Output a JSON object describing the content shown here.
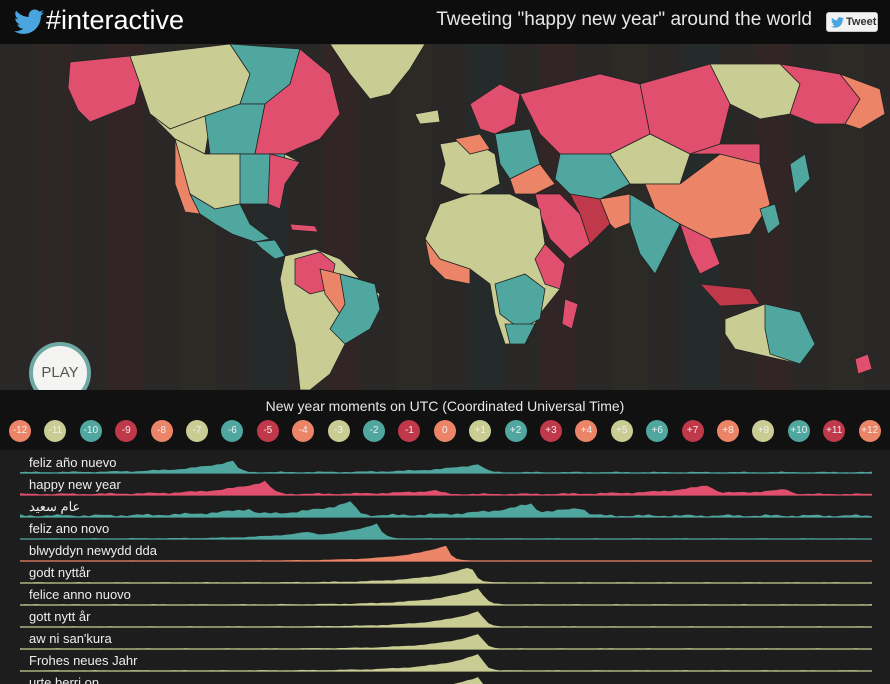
{
  "header": {
    "brand": "#interactive",
    "headline": "Tweeting \"happy new year\" around the world",
    "tweet_label": "Tweet"
  },
  "colors": {
    "teal": "#4fa7a0",
    "pink": "#e0506e",
    "salmon": "#ec8568",
    "khaki": "#c9cd93",
    "red": "#c0394a",
    "dark": "#1d1d1d"
  },
  "map": {
    "play_label": "PLAY"
  },
  "timezones": {
    "title": "New year moments on UTC (Coordinated Universal Time)",
    "items": [
      {
        "label": "-12",
        "color": "#ec8568"
      },
      {
        "label": "-11",
        "color": "#c9cd93"
      },
      {
        "label": "-10",
        "color": "#4fa7a0"
      },
      {
        "label": "-9",
        "color": "#c0394a"
      },
      {
        "label": "-8",
        "color": "#ec8568"
      },
      {
        "label": "-7",
        "color": "#c9cd93"
      },
      {
        "label": "-6",
        "color": "#4fa7a0"
      },
      {
        "label": "-5",
        "color": "#c0394a"
      },
      {
        "label": "-4",
        "color": "#ec8568"
      },
      {
        "label": "-3",
        "color": "#c9cd93"
      },
      {
        "label": "-2",
        "color": "#4fa7a0"
      },
      {
        "label": "-1",
        "color": "#c0394a"
      },
      {
        "label": "0",
        "color": "#ec8568"
      },
      {
        "label": "+1",
        "color": "#c9cd93"
      },
      {
        "label": "+2",
        "color": "#4fa7a0"
      },
      {
        "label": "+3",
        "color": "#c0394a"
      },
      {
        "label": "+4",
        "color": "#ec8568"
      },
      {
        "label": "+5",
        "color": "#c9cd93"
      },
      {
        "label": "+6",
        "color": "#4fa7a0"
      },
      {
        "label": "+7",
        "color": "#c0394a"
      },
      {
        "label": "+8",
        "color": "#ec8568"
      },
      {
        "label": "+9",
        "color": "#c9cd93"
      },
      {
        "label": "+10",
        "color": "#4fa7a0"
      },
      {
        "label": "+11",
        "color": "#c0394a"
      },
      {
        "label": "+12",
        "color": "#ec8568"
      }
    ]
  },
  "tracks": [
    {
      "label": "feliz año nuevo",
      "color": "#4fa7a0",
      "peaks": [
        [
          0.25,
          0.6
        ],
        [
          0.54,
          0.45
        ]
      ],
      "noise": 0.08
    },
    {
      "label": "happy new year",
      "color": "#e0506e",
      "peaks": [
        [
          0.29,
          0.7
        ],
        [
          0.49,
          0.2
        ],
        [
          0.81,
          0.45
        ],
        [
          0.9,
          0.25
        ]
      ],
      "noise": 0.1
    },
    {
      "label": "عام سعيد",
      "color": "#4fa7a0",
      "peaks": [
        [
          0.27,
          0.3
        ],
        [
          0.39,
          0.75
        ],
        [
          0.6,
          0.5
        ],
        [
          0.66,
          0.45
        ]
      ],
      "noise": 0.15
    },
    {
      "label": "feliz ano novo",
      "color": "#4fa7a0",
      "peaks": [
        [
          0.42,
          0.8
        ],
        [
          0.34,
          0.2
        ]
      ],
      "noise": 0.05
    },
    {
      "label": "blwyddyn newydd dda",
      "color": "#ec8568",
      "peaks": [
        [
          0.5,
          0.8
        ]
      ],
      "noise": 0.03
    },
    {
      "label": "godt nyttår",
      "color": "#c9cd93",
      "peaks": [
        [
          0.53,
          0.85
        ]
      ],
      "noise": 0.05
    },
    {
      "label": "felice anno nuovo",
      "color": "#c9cd93",
      "peaks": [
        [
          0.54,
          0.9
        ]
      ],
      "noise": 0.05
    },
    {
      "label": "gott nytt år",
      "color": "#c9cd93",
      "peaks": [
        [
          0.54,
          0.85
        ]
      ],
      "noise": 0.04
    },
    {
      "label": "aw ni san'kura",
      "color": "#c9cd93",
      "peaks": [
        [
          0.54,
          0.8
        ]
      ],
      "noise": 0.04
    },
    {
      "label": "Frohes neues Jahr",
      "color": "#c9cd93",
      "peaks": [
        [
          0.54,
          0.9
        ]
      ],
      "noise": 0.05
    },
    {
      "label": "urte berri on",
      "color": "#c9cd93",
      "peaks": [
        [
          0.54,
          0.85
        ]
      ],
      "noise": 0.04
    }
  ]
}
